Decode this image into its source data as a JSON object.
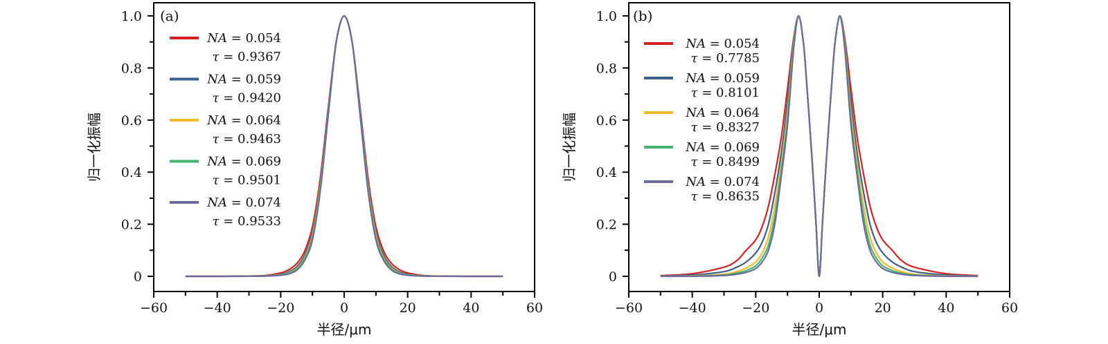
{
  "chart_data": [
    {
      "type": "line",
      "panel_label": "(a)",
      "xlabel": "半径/μm",
      "ylabel": "归一化振幅",
      "xlim": [
        -60,
        60
      ],
      "ylim": [
        -0.06,
        1.03
      ],
      "xticks": [
        "−60",
        "−40",
        "−20",
        "0",
        "20",
        "40",
        "60"
      ],
      "xtick_values": [
        -60,
        -40,
        -20,
        0,
        20,
        40,
        60
      ],
      "yticks": [
        "0",
        "0.2",
        "0.4",
        "0.6",
        "0.8",
        "1.0"
      ],
      "ytick_values": [
        0,
        0.2,
        0.4,
        0.6,
        0.8,
        1.0
      ],
      "legend_position": "top-left",
      "na_symbol": "NA",
      "tau_symbol": "τ",
      "symmetric_about_zero": true,
      "x": [
        0,
        2.5,
        5,
        7.5,
        10,
        12.5,
        15,
        17.5,
        20,
        25,
        30,
        40,
        50
      ],
      "series": [
        {
          "na": "0.054",
          "tau": "0.9367",
          "color": "#d42121",
          "values": [
            1,
            0.9,
            0.65,
            0.38,
            0.19,
            0.095,
            0.048,
            0.025,
            0.013,
            0.003,
            0.001,
            0,
            0
          ]
        },
        {
          "na": "0.059",
          "tau": "0.9420",
          "color": "#3b5f8e",
          "values": [
            1,
            0.9,
            0.64,
            0.36,
            0.17,
            0.08,
            0.036,
            0.017,
            0.008,
            0.002,
            0.0005,
            0,
            0
          ]
        },
        {
          "na": "0.064",
          "tau": "0.9463",
          "color": "#f0b92e",
          "values": [
            1,
            0.9,
            0.63,
            0.35,
            0.16,
            0.07,
            0.03,
            0.013,
            0.006,
            0.0015,
            0.0003,
            0,
            0
          ]
        },
        {
          "na": "0.069",
          "tau": "0.9501",
          "color": "#44b36d",
          "values": [
            1,
            0.9,
            0.63,
            0.34,
            0.15,
            0.065,
            0.026,
            0.011,
            0.005,
            0.001,
            0.0002,
            0,
            0
          ]
        },
        {
          "na": "0.074",
          "tau": "0.9533",
          "color": "#6a6c9c",
          "values": [
            1,
            0.9,
            0.62,
            0.33,
            0.14,
            0.06,
            0.023,
            0.009,
            0.004,
            0.0008,
            0.0001,
            0,
            0
          ]
        }
      ]
    },
    {
      "type": "line",
      "panel_label": "(b)",
      "xlabel": "半径/μm",
      "ylabel": "归一化振幅",
      "xlim": [
        -60,
        60
      ],
      "ylim": [
        -0.06,
        1.03
      ],
      "xticks": [
        "−60",
        "−40",
        "−20",
        "0",
        "20",
        "40",
        "60"
      ],
      "xtick_values": [
        -60,
        -40,
        -20,
        0,
        20,
        40,
        60
      ],
      "yticks": [
        "0",
        "0.2",
        "0.4",
        "0.6",
        "0.8",
        "1.0"
      ],
      "ytick_values": [
        0,
        0.2,
        0.4,
        0.6,
        0.8,
        1.0
      ],
      "legend_position": "top-left",
      "na_symbol": "NA",
      "tau_symbol": "τ",
      "symmetric_about_zero": true,
      "x": [
        0,
        1,
        2,
        3,
        4,
        5,
        6.5,
        8,
        10,
        12,
        14,
        16,
        18,
        20,
        23,
        26,
        30,
        40,
        50
      ],
      "series": [
        {
          "na": "0.054",
          "tau": "0.7785",
          "color": "#d42121",
          "values": [
            0,
            0.2,
            0.4,
            0.58,
            0.75,
            0.9,
            1,
            0.92,
            0.72,
            0.53,
            0.39,
            0.27,
            0.19,
            0.14,
            0.1,
            0.06,
            0.035,
            0.01,
            0.003
          ]
        },
        {
          "na": "0.059",
          "tau": "0.8101",
          "color": "#3b5f8e",
          "values": [
            0,
            0.2,
            0.4,
            0.58,
            0.75,
            0.9,
            1,
            0.91,
            0.67,
            0.47,
            0.32,
            0.2,
            0.13,
            0.09,
            0.055,
            0.035,
            0.018,
            0.005,
            0.001
          ]
        },
        {
          "na": "0.064",
          "tau": "0.8327",
          "color": "#f0b92e",
          "values": [
            0,
            0.2,
            0.4,
            0.58,
            0.75,
            0.9,
            1,
            0.9,
            0.63,
            0.43,
            0.27,
            0.15,
            0.09,
            0.055,
            0.032,
            0.018,
            0.008,
            0.002,
            0
          ]
        },
        {
          "na": "0.069",
          "tau": "0.8499",
          "color": "#44b36d",
          "values": [
            0,
            0.2,
            0.4,
            0.58,
            0.75,
            0.9,
            1,
            0.89,
            0.6,
            0.4,
            0.23,
            0.12,
            0.07,
            0.04,
            0.022,
            0.012,
            0.005,
            0.001,
            0
          ]
        },
        {
          "na": "0.074",
          "tau": "0.8635",
          "color": "#6a6c9c",
          "values": [
            0,
            0.2,
            0.4,
            0.58,
            0.75,
            0.9,
            1,
            0.88,
            0.58,
            0.38,
            0.2,
            0.1,
            0.055,
            0.03,
            0.015,
            0.008,
            0.003,
            0,
            0
          ]
        }
      ]
    }
  ]
}
